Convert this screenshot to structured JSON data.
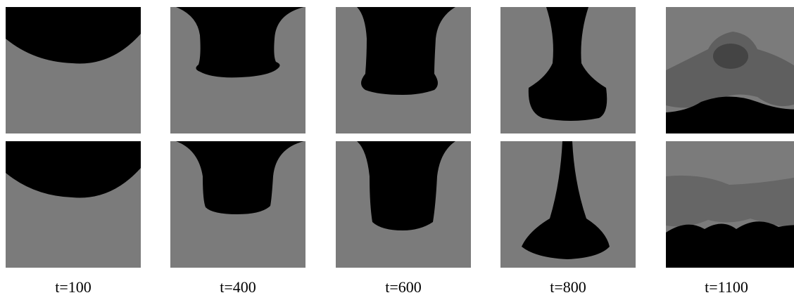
{
  "captions": [
    "t=100",
    "t=400",
    "t=600",
    "t=800",
    "t=1100"
  ]
}
